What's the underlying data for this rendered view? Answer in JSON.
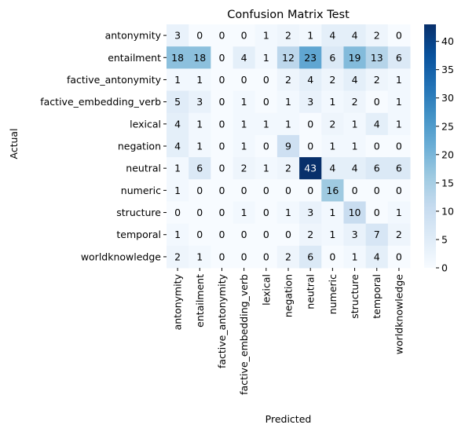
{
  "chart_data": {
    "type": "heatmap",
    "title": "Confusion Matrix Test",
    "xlabel": "Predicted",
    "ylabel": "Actual",
    "x_categories": [
      "antonymity",
      "entailment",
      "factive_antonymity",
      "factive_embedding_verb",
      "lexical",
      "negation",
      "neutral",
      "numeric",
      "structure",
      "temporal",
      "worldknowledge"
    ],
    "y_categories": [
      "antonymity",
      "entailment",
      "factive_antonymity",
      "factive_embedding_verb",
      "lexical",
      "negation",
      "neutral",
      "numeric",
      "structure",
      "temporal",
      "worldknowledge"
    ],
    "values": [
      [
        3,
        0,
        0,
        0,
        1,
        2,
        1,
        4,
        4,
        2,
        0
      ],
      [
        18,
        18,
        0,
        4,
        1,
        12,
        23,
        6,
        19,
        13,
        6
      ],
      [
        1,
        1,
        0,
        0,
        0,
        2,
        4,
        2,
        4,
        2,
        1
      ],
      [
        5,
        3,
        0,
        1,
        0,
        1,
        3,
        1,
        2,
        0,
        1
      ],
      [
        4,
        1,
        0,
        1,
        1,
        1,
        0,
        2,
        1,
        4,
        1
      ],
      [
        4,
        1,
        0,
        1,
        0,
        9,
        0,
        1,
        1,
        0,
        0
      ],
      [
        1,
        6,
        0,
        2,
        1,
        2,
        43,
        4,
        4,
        6,
        6
      ],
      [
        1,
        0,
        0,
        0,
        0,
        0,
        0,
        16,
        0,
        0,
        0
      ],
      [
        0,
        0,
        0,
        1,
        0,
        1,
        3,
        1,
        10,
        0,
        1
      ],
      [
        1,
        0,
        0,
        0,
        0,
        0,
        2,
        1,
        3,
        7,
        2
      ],
      [
        2,
        1,
        0,
        0,
        0,
        2,
        6,
        0,
        1,
        4,
        0
      ]
    ],
    "colormap": "Blues",
    "colorbar": {
      "range": [
        0,
        43
      ],
      "ticks": [
        0,
        5,
        10,
        15,
        20,
        25,
        30,
        35,
        40
      ]
    },
    "colors": {
      "low": "#f7fbff",
      "high": "#08306b",
      "text_dark": "#000000",
      "text_light": "#ffffff"
    }
  }
}
